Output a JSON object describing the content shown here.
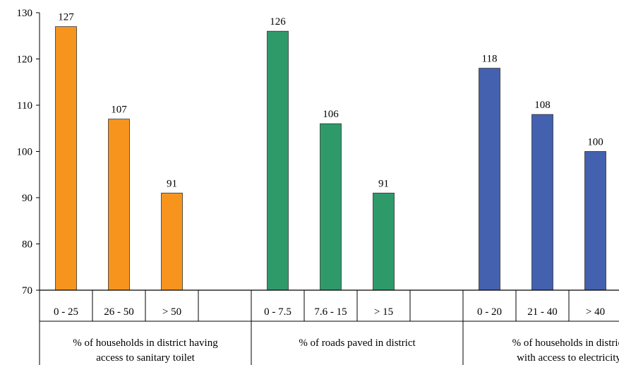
{
  "chart_data": {
    "type": "bar",
    "title": "",
    "xlabel": "",
    "ylabel": "",
    "ylim": [
      70,
      130
    ],
    "yticks": [
      70,
      80,
      90,
      100,
      110,
      120,
      130
    ],
    "grid": false,
    "groups": [
      {
        "label": "% of households in district having access to sanitary toilet",
        "label_lines": [
          "% of households in district having",
          "access to sanitary toilet"
        ],
        "color": "#F7941D",
        "categories": [
          "0 - 25",
          "26 - 50",
          "> 50"
        ],
        "values": [
          127,
          107,
          91
        ]
      },
      {
        "label": "% of roads paved in district",
        "label_lines": [
          "% of roads paved in district"
        ],
        "color": "#2E9A6A",
        "categories": [
          "0 - 7.5",
          "7.6 - 15",
          "> 15"
        ],
        "values": [
          126,
          106,
          91
        ]
      },
      {
        "label": "% of households in district with access to electricity",
        "label_lines": [
          "% of households in district",
          "with access to electricity"
        ],
        "color": "#4461B0",
        "categories": [
          "0 - 20",
          "21 - 40",
          "> 40"
        ],
        "values": [
          118,
          108,
          100
        ]
      }
    ]
  }
}
